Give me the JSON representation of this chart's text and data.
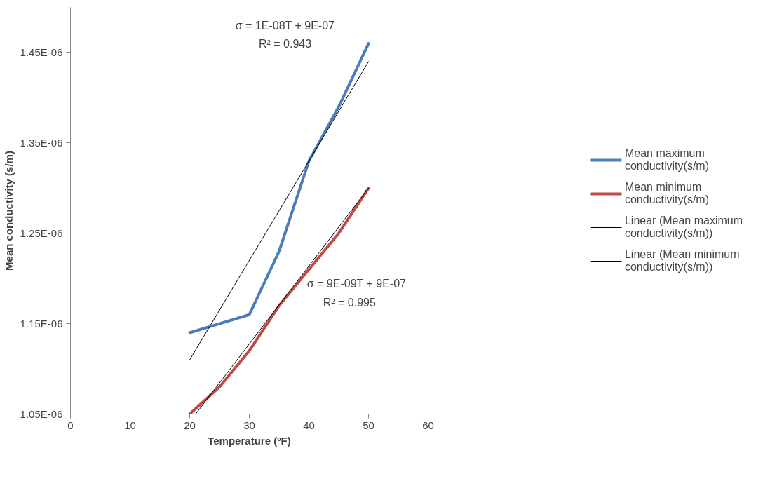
{
  "chart_data": {
    "type": "line",
    "xlabel": "Temperature (ºF)",
    "ylabel": "Mean conductivity (s/m)",
    "xlim": [
      0,
      60
    ],
    "xticks": [
      0,
      10,
      20,
      30,
      40,
      50,
      60
    ],
    "ylim": [
      1.05e-06,
      1.5e-06
    ],
    "yticks": [
      {
        "value": 1.05e-06,
        "label": "1.05E-06"
      },
      {
        "value": 1.15e-06,
        "label": "1.15E-06"
      },
      {
        "value": 1.25e-06,
        "label": "1.25E-06"
      },
      {
        "value": 1.35e-06,
        "label": "1.35E-06"
      },
      {
        "value": 1.45e-06,
        "label": "1.45E-06"
      }
    ],
    "x": [
      20,
      25,
      30,
      35,
      40,
      45,
      50
    ],
    "series": [
      {
        "name": "Mean maximum conductivity(s/m)",
        "color": "#4a7ebb",
        "values": [
          1.14e-06,
          1.15e-06,
          1.16e-06,
          1.23e-06,
          1.33e-06,
          1.39e-06,
          1.46e-06
        ]
      },
      {
        "name": "Mean minimum conductivity(s/m)",
        "color": "#be4b48",
        "values": [
          1.05e-06,
          1.08e-06,
          1.12e-06,
          1.17e-06,
          1.21e-06,
          1.25e-06,
          1.3e-06
        ]
      },
      {
        "name": "Linear (Mean maximum conductivity(s/m))",
        "color": "#000000",
        "x": [
          20,
          50
        ],
        "values": [
          1.11e-06,
          1.44e-06
        ]
      },
      {
        "name": "Linear (Mean minimum conductivity(s/m))",
        "color": "#000000",
        "x": [
          21,
          50
        ],
        "values": [
          1.05e-06,
          1.3e-06
        ]
      }
    ],
    "annotations": [
      "σ = 1E-08T + 9E-07",
      "R² = 0.943",
      "σ = 9E-09T + 9E-07",
      "R² = 0.995"
    ],
    "grid": false,
    "legend": "right",
    "marker": "none",
    "line_style": "solid"
  }
}
